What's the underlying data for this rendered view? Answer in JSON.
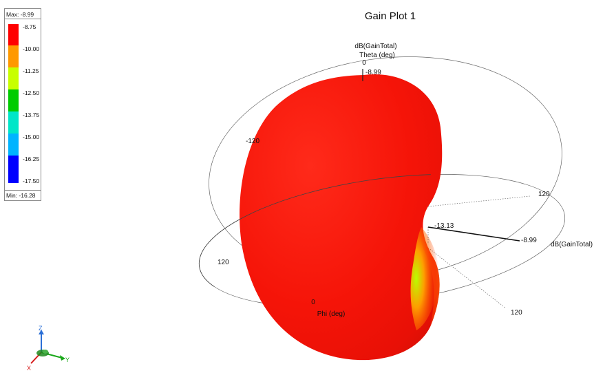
{
  "chart_data": {
    "type": "3d-radiation-pattern",
    "title": "Gain Plot 1",
    "quantity": "dB(GainTotal)",
    "legend": {
      "max_label": "Max: -8.99",
      "min_label": "Min: -16.28",
      "ticks": [
        "-8.75",
        "-10.00",
        "-11.25",
        "-12.50",
        "-13.75",
        "-15.00",
        "-16.25",
        "-17.50"
      ],
      "colors": [
        "#ff0000",
        "#ff9900",
        "#c8ff00",
        "#00cc00",
        "#00e6c8",
        "#00b4ff",
        "#0000ff"
      ]
    },
    "theta_axis": {
      "label": "Theta (deg)",
      "tick_label": "0",
      "value_label": "-8.99"
    },
    "phi_axis": {
      "label": "Phi (deg)",
      "tick_label": "0"
    },
    "gain_axis": {
      "label": "dB(GainTotal)",
      "near_value": "-13.13",
      "far_value": "-8.99"
    },
    "ring_labels": [
      "-120",
      "120",
      "120",
      "120"
    ]
  },
  "triad": {
    "z": "Z",
    "y": "Y",
    "x": "X"
  }
}
